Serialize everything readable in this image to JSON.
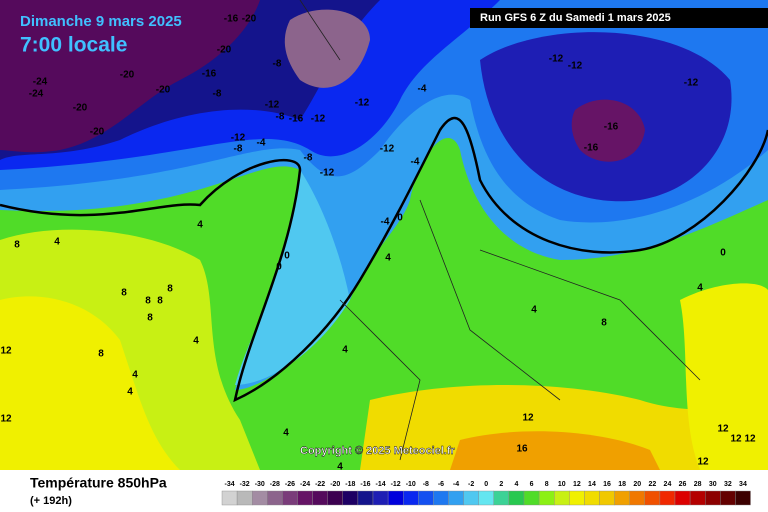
{
  "header": {
    "date": "Dimanche 9 mars 2025",
    "time": "7:00 locale",
    "run": "Run GFS 6 Z du Samedi 1 mars 2025"
  },
  "map": {
    "copyright": "Copyright © 2025 Meteociel.fr",
    "contour_labels": [
      -24,
      -24,
      -20,
      -20,
      -20,
      -20,
      -16,
      -20,
      -16,
      -20,
      -8,
      -8,
      -12,
      -12,
      -8,
      -4,
      -8,
      -16,
      -12,
      -8,
      -12,
      -12,
      -12,
      -4,
      -4,
      -4,
      0,
      -12,
      -12,
      -12,
      -16,
      -16,
      4,
      4,
      8,
      0,
      0,
      8,
      8,
      8,
      8,
      8,
      12,
      8,
      4,
      4,
      4,
      4,
      4,
      8,
      0,
      4,
      12,
      16,
      12,
      12,
      12,
      12,
      4,
      4,
      12,
      4
    ]
  },
  "footer": {
    "title": "Température 850hPa",
    "lead": "(+ 192h)"
  },
  "legend": {
    "values": [
      -34,
      -32,
      -30,
      -28,
      -26,
      -24,
      -22,
      -20,
      -18,
      -16,
      -14,
      -12,
      -10,
      -8,
      -6,
      -4,
      -2,
      0,
      2,
      4,
      6,
      8,
      10,
      12,
      14,
      16,
      18,
      20,
      22,
      24,
      26,
      28,
      30,
      32,
      34
    ],
    "colors": [
      "#d2d2d2",
      "#b9b9b9",
      "#a38ca3",
      "#8c648c",
      "#7a3c7a",
      "#661466",
      "#550a5c",
      "#3c0050",
      "#1e0064",
      "#14148c",
      "#1e1eb4",
      "#0000dc",
      "#0a28f0",
      "#1450f0",
      "#1e78f0",
      "#32a0f0",
      "#50c8f0",
      "#64e6f0",
      "#3cd296",
      "#28c850",
      "#50dc28",
      "#8cf014",
      "#c8f014",
      "#f0f000",
      "#f0dc00",
      "#f0c800",
      "#f0a000",
      "#f07800",
      "#f05000",
      "#f02800",
      "#dc0000",
      "#b40000",
      "#8c0000",
      "#640000",
      "#3c0000"
    ]
  }
}
